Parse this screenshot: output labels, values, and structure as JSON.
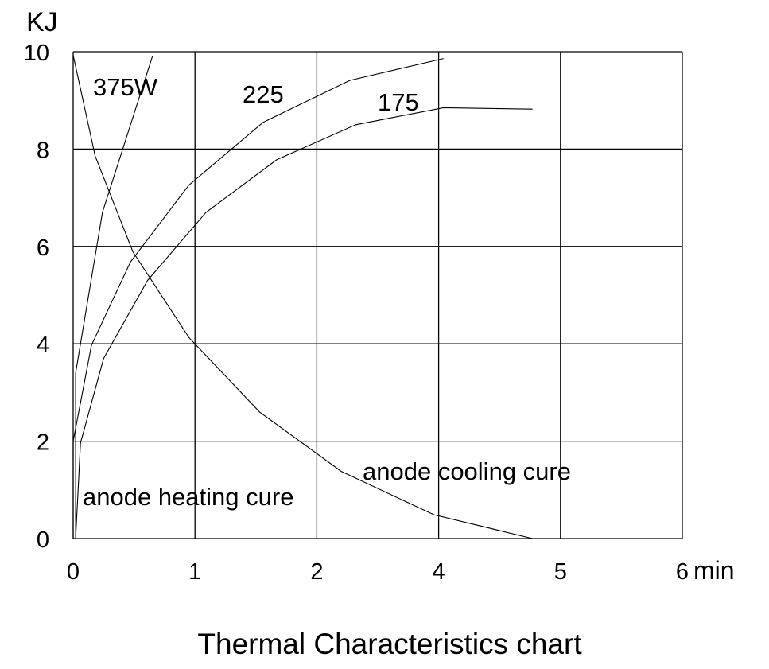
{
  "chart_data": {
    "type": "line",
    "title": "Thermal Characteristics chart",
    "xlabel": "min",
    "ylabel": "KJ",
    "x_tick_labels": [
      "0",
      "1",
      "2",
      "4",
      "5",
      "6"
    ],
    "y_tick_labels": [
      "0",
      "2",
      "4",
      "6",
      "8",
      "10"
    ],
    "xlim": [
      0,
      6
    ],
    "ylim": [
      0,
      10
    ],
    "grid": true,
    "series": [
      {
        "name": "375W",
        "points": [
          [
            0,
            0
          ],
          [
            0.02,
            0
          ],
          [
            0.02,
            3.4
          ],
          [
            0.24,
            6.7
          ],
          [
            0.65,
            9.9
          ]
        ]
      },
      {
        "name": "225",
        "points": [
          [
            0,
            0
          ],
          [
            0,
            2.0
          ],
          [
            0.15,
            3.97
          ],
          [
            0.47,
            5.68
          ],
          [
            0.95,
            7.26
          ],
          [
            1.56,
            8.55
          ],
          [
            2.54,
            9.41
          ],
          [
            4.04,
            9.86
          ]
        ]
      },
      {
        "name": "175",
        "points": [
          [
            0.02,
            0
          ],
          [
            0.06,
            1.96
          ],
          [
            0.25,
            3.7
          ],
          [
            0.61,
            5.3
          ],
          [
            1.09,
            6.7
          ],
          [
            1.67,
            7.78
          ],
          [
            2.64,
            8.5
          ],
          [
            4.04,
            8.85
          ],
          [
            4.77,
            8.82
          ]
        ]
      },
      {
        "name": "anode cooling cure",
        "points": [
          [
            0,
            9.93
          ],
          [
            0.18,
            7.86
          ],
          [
            0.49,
            5.89
          ],
          [
            0.95,
            4.13
          ],
          [
            1.53,
            2.6
          ],
          [
            2.4,
            1.38
          ],
          [
            3.92,
            0.49
          ],
          [
            4.77,
            0
          ]
        ]
      }
    ],
    "annotations": {
      "w375": "375W",
      "w225": "225",
      "w175": "175",
      "heating": "anode heating cure",
      "cooling": "anode cooling cure"
    }
  }
}
